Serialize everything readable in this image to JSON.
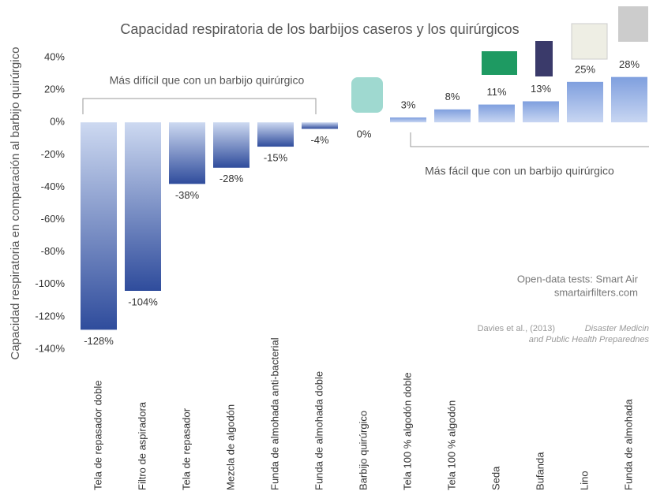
{
  "chart_data": {
    "type": "bar",
    "title": "Capacidad respiratoria de los barbijos caseros y los quirúrgicos",
    "y_label": "Capacidad respiratoria  en comparación al barbijo quirúrgico",
    "categories": [
      "Tela de repasador doble",
      "Filtro de aspiradora",
      "Tela de repasador",
      "Mezcla de algodón",
      "Funda de almohada anti-bacterial",
      "Funda de almohada doble",
      "Barbijo quirúrgico",
      "Tela 100 % algodón doble",
      "Tela 100 % algodón",
      "Seda",
      "Bufanda",
      "Lino",
      "Funda de almohada"
    ],
    "values": [
      -128,
      -104,
      -38,
      -28,
      -15,
      -4,
      0,
      3,
      8,
      11,
      13,
      25,
      28
    ],
    "value_labels": [
      "-128%",
      "-104%",
      "-38%",
      "-28%",
      "-15%",
      "-4%",
      "0%",
      "3%",
      "8%",
      "11%",
      "13%",
      "25%",
      "28%"
    ],
    "ylim": [
      -140,
      40
    ],
    "yticks": [
      {
        "value": -140,
        "label": "-140%"
      },
      {
        "value": -120,
        "label": "-120%"
      },
      {
        "value": -100,
        "label": "-100%"
      },
      {
        "value": -80,
        "label": "-80%"
      },
      {
        "value": -60,
        "label": "-60%"
      },
      {
        "value": -40,
        "label": "-40%"
      },
      {
        "value": -20,
        "label": "-20%"
      },
      {
        "value": 0,
        "label": "0%"
      },
      {
        "value": 20,
        "label": "20%"
      },
      {
        "value": 40,
        "label": "40%"
      }
    ],
    "annotations": [
      "Más difícil que con un barbijo quirúrgico",
      "Más fácil que con un barbijo quirúrgico",
      "Open-data tests: Smart Air",
      "smartairfilters.com",
      "Davies et al., (2013)",
      "Disaster Medicin",
      "and Public Health Preparednes"
    ],
    "grid": false
  }
}
